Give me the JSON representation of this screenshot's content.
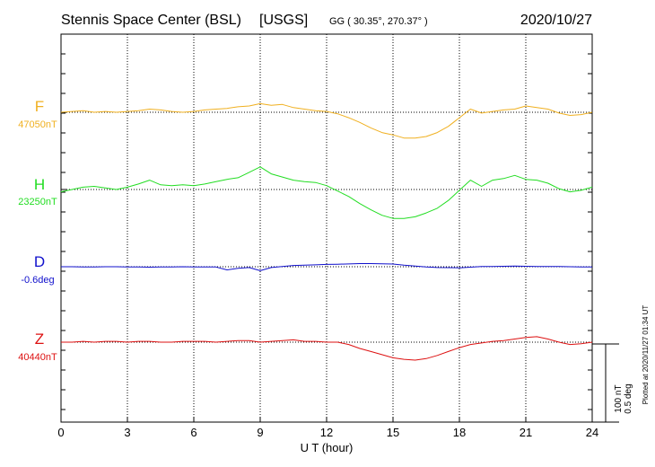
{
  "header": {
    "station": "Stennis Space Center (BSL)",
    "network": "[USGS]",
    "coords": "GG ( 30.35°, 270.37° )",
    "date": "2020/10/27"
  },
  "side_note": "Plotted at 2020/11/27 01:34 UT",
  "scale_note": {
    "line1": "100 nT",
    "line2": "0.5 deg"
  },
  "chart_data": {
    "type": "line",
    "xlabel": "U T (hour)",
    "xlim": [
      0,
      24
    ],
    "xticks": [
      0,
      3,
      6,
      9,
      12,
      15,
      18,
      21,
      24
    ],
    "grid": true,
    "scale_bar_nT": 100,
    "scale_bar_deg": 0.5,
    "series": [
      {
        "name": "F",
        "baseline_label": "47050nT",
        "baseline": 47050,
        "unit": "nT",
        "color": "#f0b020",
        "x": [
          0,
          0.5,
          1,
          1.5,
          2,
          2.5,
          3,
          3.5,
          4,
          4.5,
          5,
          5.5,
          6,
          6.5,
          7,
          7.5,
          8,
          8.5,
          9,
          9.5,
          10,
          10.5,
          11,
          11.5,
          12,
          12.5,
          13,
          13.5,
          14,
          14.5,
          15,
          15.5,
          16,
          16.5,
          17,
          17.5,
          18,
          18.5,
          19,
          19.5,
          20,
          20.5,
          21,
          21.5,
          22,
          22.5,
          23,
          23.5,
          24
        ],
        "y": [
          47050,
          47051,
          47052,
          47050,
          47051,
          47050,
          47051,
          47052,
          47054,
          47053,
          47051,
          47050,
          47051,
          47053,
          47054,
          47055,
          47057,
          47058,
          47061,
          47059,
          47060,
          47056,
          47054,
          47052,
          47051,
          47048,
          47043,
          47037,
          47030,
          47024,
          47021,
          47017,
          47017,
          47019,
          47024,
          47032,
          47043,
          47054,
          47049,
          47051,
          47053,
          47054,
          47058,
          47056,
          47054,
          47049,
          47046,
          47047,
          47050
        ]
      },
      {
        "name": "H",
        "baseline_label": "23250nT",
        "baseline": 23250,
        "unit": "nT",
        "color": "#22dd22",
        "x": [
          0,
          0.5,
          1,
          1.5,
          2,
          2.5,
          3,
          3.5,
          4,
          4.5,
          5,
          5.5,
          6,
          6.5,
          7,
          7.5,
          8,
          8.5,
          9,
          9.5,
          10,
          10.5,
          11,
          11.5,
          12,
          12.5,
          13,
          13.5,
          14,
          14.5,
          15,
          15.5,
          16,
          16.5,
          17,
          17.5,
          18,
          18.5,
          19,
          19.5,
          20,
          20.5,
          21,
          21.5,
          22,
          22.5,
          23,
          23.5,
          24
        ],
        "y": [
          23247,
          23250,
          23253,
          23254,
          23252,
          23250,
          23253,
          23257,
          23262,
          23256,
          23255,
          23256,
          23255,
          23257,
          23260,
          23263,
          23265,
          23272,
          23279,
          23270,
          23266,
          23262,
          23260,
          23259,
          23255,
          23248,
          23241,
          23232,
          23224,
          23217,
          23213,
          23213,
          23215,
          23220,
          23226,
          23236,
          23249,
          23262,
          23254,
          23262,
          23264,
          23268,
          23263,
          23262,
          23258,
          23251,
          23247,
          23249,
          23253
        ]
      },
      {
        "name": "D",
        "baseline_label": "-0.6deg",
        "baseline": -0.6,
        "unit": "deg",
        "color": "#1010cc",
        "x": [
          0,
          0.5,
          1,
          1.5,
          2,
          2.5,
          3,
          3.5,
          4,
          4.5,
          5,
          5.5,
          6,
          6.5,
          7,
          7.5,
          8,
          8.5,
          9,
          9.5,
          10,
          10.5,
          11,
          11.5,
          12,
          12.5,
          13,
          13.5,
          14,
          14.5,
          15,
          15.5,
          16,
          16.5,
          17,
          17.5,
          18,
          18.5,
          19,
          19.5,
          20,
          20.5,
          21,
          21.5,
          22,
          22.5,
          23,
          23.5,
          24
        ],
        "y": [
          -0.6,
          -0.6,
          -0.601,
          -0.601,
          -0.6,
          -0.6,
          -0.602,
          -0.601,
          -0.603,
          -0.602,
          -0.601,
          -0.6,
          -0.601,
          -0.601,
          -0.602,
          -0.62,
          -0.61,
          -0.605,
          -0.625,
          -0.605,
          -0.598,
          -0.592,
          -0.59,
          -0.588,
          -0.585,
          -0.584,
          -0.582,
          -0.58,
          -0.58,
          -0.581,
          -0.583,
          -0.59,
          -0.596,
          -0.602,
          -0.605,
          -0.606,
          -0.607,
          -0.603,
          -0.599,
          -0.598,
          -0.597,
          -0.596,
          -0.597,
          -0.598,
          -0.599,
          -0.598,
          -0.6,
          -0.601,
          -0.602
        ]
      },
      {
        "name": "Z",
        "baseline_label": "40440nT",
        "baseline": 40440,
        "unit": "nT",
        "color": "#dd1111",
        "x": [
          0,
          0.5,
          1,
          1.5,
          2,
          2.5,
          3,
          3.5,
          4,
          4.5,
          5,
          5.5,
          6,
          6.5,
          7,
          7.5,
          8,
          8.5,
          9,
          9.5,
          10,
          10.5,
          11,
          11.5,
          12,
          12.5,
          13,
          13.5,
          14,
          14.5,
          15,
          15.5,
          16,
          16.5,
          17,
          17.5,
          18,
          18.5,
          19,
          19.5,
          20,
          20.5,
          21,
          21.5,
          22,
          22.5,
          23,
          23.5,
          24
        ],
        "y": [
          40440,
          40440,
          40441,
          40440,
          40441,
          40441,
          40440,
          40441,
          40441,
          40440,
          40440,
          40441,
          40441,
          40441,
          40440,
          40441,
          40442,
          40442,
          40440,
          40441,
          40442,
          40443,
          40441,
          40441,
          40440,
          40440,
          40437,
          40432,
          40428,
          40424,
          40420,
          40418,
          40417,
          40419,
          40423,
          40428,
          40433,
          40437,
          40439,
          40441,
          40442,
          40444,
          40446,
          40447,
          40444,
          40440,
          40437,
          40438,
          40440
        ]
      }
    ]
  }
}
